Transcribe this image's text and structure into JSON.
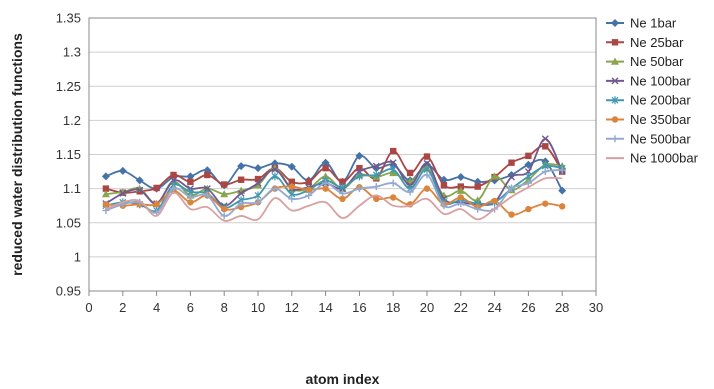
{
  "chart_data": {
    "type": "line",
    "xlabel": "atom index",
    "ylabel": "reduced water distribution functions",
    "xlim": [
      0,
      30
    ],
    "ylim": [
      0.95,
      1.35
    ],
    "xticks": [
      0,
      2,
      4,
      6,
      8,
      10,
      12,
      14,
      16,
      18,
      20,
      22,
      24,
      26,
      28,
      30
    ],
    "xtick_labels": [
      "0",
      "2",
      "4",
      "6",
      "8",
      "10",
      "12",
      "14",
      "16",
      "18",
      "20",
      "22",
      "24",
      "26",
      "28",
      "30"
    ],
    "yticks": [
      0.95,
      1.0,
      1.05,
      1.1,
      1.15,
      1.2,
      1.25,
      1.3,
      1.35
    ],
    "ytick_labels": [
      "0.95",
      "1",
      "1.05",
      "1.1",
      "1.15",
      "1.2",
      "1.25",
      "1.3",
      "1.35"
    ],
    "grid": "horizontal",
    "legend_position": "right",
    "smooth": true,
    "x": [
      1,
      2,
      3,
      4,
      5,
      6,
      7,
      8,
      9,
      10,
      11,
      12,
      13,
      14,
      15,
      16,
      17,
      18,
      19,
      20,
      21,
      22,
      23,
      24,
      25,
      26,
      27,
      28
    ],
    "series": [
      {
        "name": "Ne 1bar",
        "color": "#4572A7",
        "marker": "diamond",
        "values": [
          1.118,
          1.126,
          1.112,
          1.1,
          1.117,
          1.118,
          1.127,
          1.105,
          1.133,
          1.13,
          1.137,
          1.132,
          1.112,
          1.138,
          1.11,
          1.148,
          1.13,
          1.135,
          1.112,
          1.135,
          1.113,
          1.117,
          1.11,
          1.112,
          1.12,
          1.135,
          1.14,
          1.097
        ]
      },
      {
        "name": "Ne 25bar",
        "color": "#AA4643",
        "marker": "square",
        "values": [
          1.1,
          1.094,
          1.096,
          1.101,
          1.12,
          1.11,
          1.12,
          1.106,
          1.113,
          1.114,
          1.13,
          1.11,
          1.11,
          1.13,
          1.11,
          1.13,
          1.115,
          1.155,
          1.123,
          1.147,
          1.105,
          1.103,
          1.103,
          1.117,
          1.138,
          1.148,
          1.162,
          1.125
        ]
      },
      {
        "name": "Ne 50bar",
        "color": "#89A54E",
        "marker": "triangle",
        "values": [
          1.092,
          1.095,
          1.1,
          1.078,
          1.11,
          1.09,
          1.1,
          1.092,
          1.097,
          1.105,
          1.13,
          1.1,
          1.1,
          1.118,
          1.1,
          1.12,
          1.117,
          1.123,
          1.11,
          1.13,
          1.09,
          1.097,
          1.083,
          1.118,
          1.098,
          1.113,
          1.135,
          1.133
        ]
      },
      {
        "name": "Ne 100bar",
        "color": "#71588F",
        "marker": "x",
        "values": [
          1.078,
          1.093,
          1.098,
          1.078,
          1.112,
          1.1,
          1.1,
          1.075,
          1.093,
          1.108,
          1.128,
          1.1,
          1.102,
          1.108,
          1.1,
          1.125,
          1.133,
          1.138,
          1.105,
          1.137,
          1.085,
          1.08,
          1.077,
          1.08,
          1.117,
          1.125,
          1.173,
          1.125
        ]
      },
      {
        "name": "Ne 200bar",
        "color": "#4198AF",
        "marker": "star",
        "values": [
          1.075,
          1.08,
          1.077,
          1.068,
          1.105,
          1.095,
          1.093,
          1.072,
          1.083,
          1.09,
          1.118,
          1.092,
          1.098,
          1.112,
          1.102,
          1.118,
          1.12,
          1.128,
          1.1,
          1.128,
          1.08,
          1.083,
          1.078,
          1.08,
          1.1,
          1.118,
          1.133,
          1.13
        ]
      },
      {
        "name": "Ne 350bar",
        "color": "#DB843D",
        "marker": "circle",
        "values": [
          1.077,
          1.075,
          1.077,
          1.077,
          1.097,
          1.08,
          1.09,
          1.07,
          1.073,
          1.08,
          1.1,
          1.103,
          1.098,
          1.1,
          1.085,
          1.102,
          1.085,
          1.087,
          1.077,
          1.1,
          1.077,
          1.087,
          1.073,
          1.082,
          1.062,
          1.07,
          1.078,
          1.074
        ]
      },
      {
        "name": "Ne 500bar",
        "color": "#93A9CF",
        "marker": "plus",
        "values": [
          1.068,
          1.077,
          1.08,
          1.065,
          1.1,
          1.088,
          1.09,
          1.06,
          1.078,
          1.08,
          1.1,
          1.085,
          1.09,
          1.108,
          1.093,
          1.1,
          1.103,
          1.108,
          1.095,
          1.12,
          1.075,
          1.078,
          1.07,
          1.07,
          1.1,
          1.108,
          1.125,
          1.127
        ]
      },
      {
        "name": "Ne 1000bar",
        "color": "#D9A0A0",
        "marker": "none",
        "values": [
          1.07,
          1.08,
          1.082,
          1.06,
          1.094,
          1.07,
          1.073,
          1.053,
          1.06,
          1.055,
          1.086,
          1.068,
          1.075,
          1.08,
          1.057,
          1.075,
          1.09,
          1.075,
          1.075,
          1.085,
          1.063,
          1.07,
          1.055,
          1.07,
          1.088,
          1.102,
          1.115,
          1.115
        ]
      }
    ]
  }
}
